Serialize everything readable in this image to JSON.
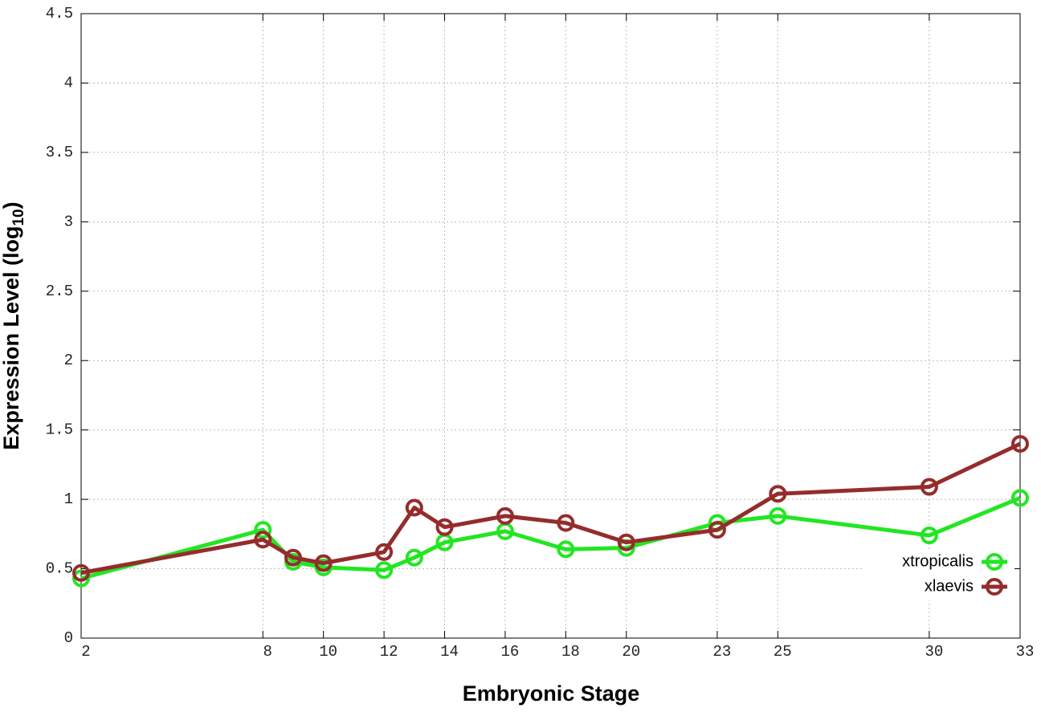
{
  "chart_data": {
    "type": "line",
    "xlabel": "Embryonic Stage",
    "ylabel": [
      "Expression Level (log",
      "10",
      ")"
    ],
    "x": [
      2,
      8,
      9,
      10,
      12,
      13,
      14,
      16,
      18,
      20,
      23,
      25,
      30,
      33
    ],
    "series": [
      {
        "name": "xtropicalis",
        "color": "#22e622",
        "values": [
          0.43,
          0.78,
          0.55,
          0.51,
          0.49,
          0.58,
          0.69,
          0.77,
          0.64,
          0.65,
          0.83,
          0.88,
          0.74,
          1.01
        ]
      },
      {
        "name": "xlaevis",
        "color": "#952c2c",
        "values": [
          0.47,
          0.71,
          0.58,
          0.54,
          0.62,
          0.94,
          0.8,
          0.88,
          0.83,
          0.69,
          0.78,
          1.04,
          1.09,
          1.4
        ]
      }
    ],
    "xlim": [
      2,
      33
    ],
    "ylim": [
      0,
      4.5
    ],
    "xticks": [
      2,
      8,
      10,
      12,
      14,
      16,
      18,
      20,
      23,
      25,
      30,
      33
    ],
    "yticks": [
      0,
      0.5,
      1,
      1.5,
      2,
      2.5,
      3,
      3.5,
      4,
      4.5
    ],
    "grid": true,
    "legend": "lower-right"
  }
}
